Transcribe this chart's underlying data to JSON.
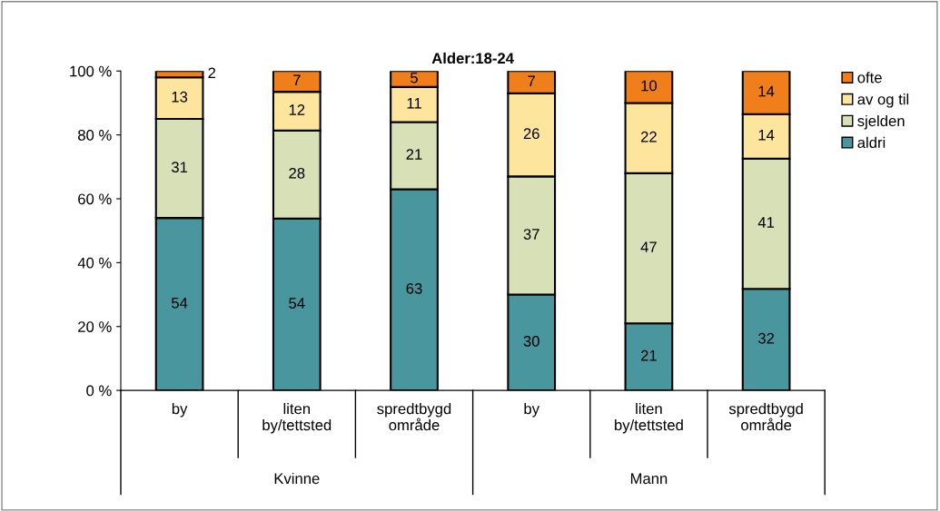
{
  "chart_data": {
    "type": "bar",
    "title": "Alder:18-24",
    "stacked": true,
    "categories": [
      "by",
      "liten\nby/tettsted",
      "spredtbygd\nområde",
      "by",
      "liten\nby/tettsted",
      "spredtbygd\nområde"
    ],
    "series": [
      {
        "name": "aldri",
        "color": "#4a969e",
        "values": [
          54,
          53.8,
          63,
          30,
          21,
          31.8
        ],
        "value_labels": [
          "54",
          "54",
          "63",
          "30",
          "21",
          "32"
        ]
      },
      {
        "name": "sjelden",
        "color": "#d7e0b6",
        "values": [
          31,
          27.6,
          21,
          37,
          47,
          40.8
        ],
        "value_labels": [
          "31",
          "28",
          "21",
          "37",
          "47",
          "41"
        ]
      },
      {
        "name": "av og til",
        "color": "#fde59d",
        "values": [
          13,
          12.1,
          11,
          26,
          22,
          13.9
        ],
        "value_labels": [
          "13",
          "12",
          "11",
          "26",
          "22",
          "14"
        ]
      },
      {
        "name": "ofte",
        "color": "#f07f1b",
        "values": [
          2,
          6.5,
          5,
          7,
          10,
          13.5
        ],
        "value_labels": [
          "2",
          "7",
          "5",
          "7",
          "10",
          "14"
        ]
      }
    ],
    "ylim": [
      0,
      100
    ],
    "yticks": [
      {
        "value": 0,
        "label": "0 %"
      },
      {
        "value": 20,
        "label": "20 %"
      },
      {
        "value": 40,
        "label": "40 %"
      },
      {
        "value": 60,
        "label": "60 %"
      },
      {
        "value": 80,
        "label": "80 %"
      },
      {
        "value": 100,
        "label": "100 %"
      }
    ],
    "annotations": [
      "Kvinne",
      "Mann"
    ],
    "legend": "right",
    "grid": false
  }
}
